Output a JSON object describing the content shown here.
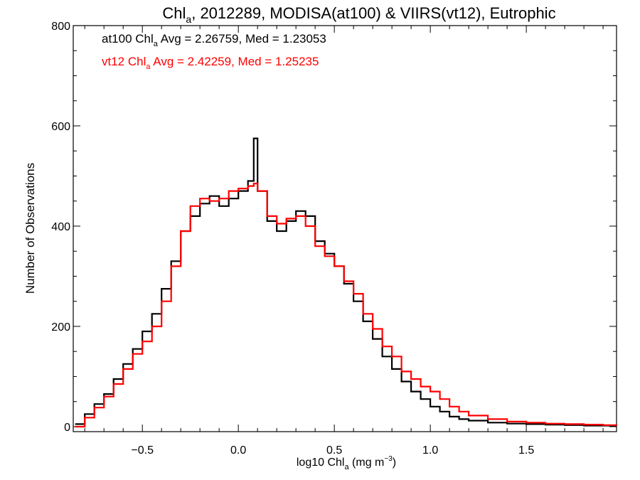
{
  "chart_data": {
    "type": "line",
    "step": true,
    "title": {
      "main": "Chl",
      "sub": "a",
      "rest": ", 2012289, MODISA(at100) & VIIRS(vt12), Eutrophic"
    },
    "xlabel": {
      "pre": "log10 Chl",
      "sub": "a",
      "mid": " (mg m",
      "sup": "−3",
      "post": ")"
    },
    "ylabel": "Number of Observations",
    "xlim": [
      -0.86,
      1.97
    ],
    "ylim": [
      -10,
      800
    ],
    "xticks": [
      -0.5,
      0.0,
      0.5,
      1.0,
      1.5
    ],
    "xtick_labels": [
      "−0.5",
      "0.0",
      "0.5",
      "1.0",
      "1.5"
    ],
    "yticks": [
      0,
      200,
      400,
      600,
      800
    ],
    "ytick_labels": [
      "0",
      "200",
      "400",
      "600",
      "800"
    ],
    "x_minor_step": 0.1,
    "y_minor_step": 50,
    "grid": false,
    "annotations": [
      {
        "pre": "at100 Chl",
        "sub": "a",
        "post": " Avg = 2.26759, Med = 1.23053",
        "color": "#000000"
      },
      {
        "pre": "vt12 Chl",
        "sub": "a",
        "post": " Avg = 2.42259, Med = 1.25235",
        "color": "#ff0000"
      }
    ],
    "x": [
      -0.85,
      -0.8,
      -0.75,
      -0.7,
      -0.65,
      -0.6,
      -0.55,
      -0.5,
      -0.45,
      -0.4,
      -0.35,
      -0.3,
      -0.25,
      -0.2,
      -0.15,
      -0.1,
      -0.05,
      0.0,
      0.05,
      0.08,
      0.1,
      0.15,
      0.2,
      0.25,
      0.3,
      0.35,
      0.4,
      0.45,
      0.5,
      0.55,
      0.6,
      0.65,
      0.7,
      0.75,
      0.8,
      0.85,
      0.9,
      0.95,
      1.0,
      1.05,
      1.1,
      1.15,
      1.2,
      1.3,
      1.4,
      1.5,
      1.6,
      1.7,
      1.8,
      1.9,
      1.97
    ],
    "series": [
      {
        "label": "at100",
        "color": "#000000",
        "values": [
          5,
          25,
          45,
          65,
          95,
          125,
          155,
          190,
          225,
          275,
          330,
          390,
          420,
          445,
          460,
          440,
          455,
          470,
          490,
          575,
          470,
          410,
          390,
          410,
          430,
          420,
          370,
          345,
          320,
          285,
          250,
          210,
          175,
          140,
          115,
          90,
          70,
          55,
          40,
          30,
          20,
          15,
          12,
          8,
          6,
          5,
          4,
          3,
          2,
          2,
          2
        ]
      },
      {
        "label": "vt12",
        "color": "#ff0000",
        "values": [
          0,
          18,
          38,
          60,
          85,
          115,
          145,
          170,
          200,
          250,
          320,
          390,
          440,
          455,
          450,
          455,
          470,
          475,
          480,
          485,
          470,
          420,
          405,
          415,
          420,
          400,
          360,
          340,
          320,
          290,
          265,
          225,
          195,
          160,
          140,
          110,
          95,
          80,
          70,
          55,
          40,
          30,
          22,
          15,
          10,
          8,
          6,
          5,
          4,
          3,
          2
        ]
      }
    ]
  }
}
